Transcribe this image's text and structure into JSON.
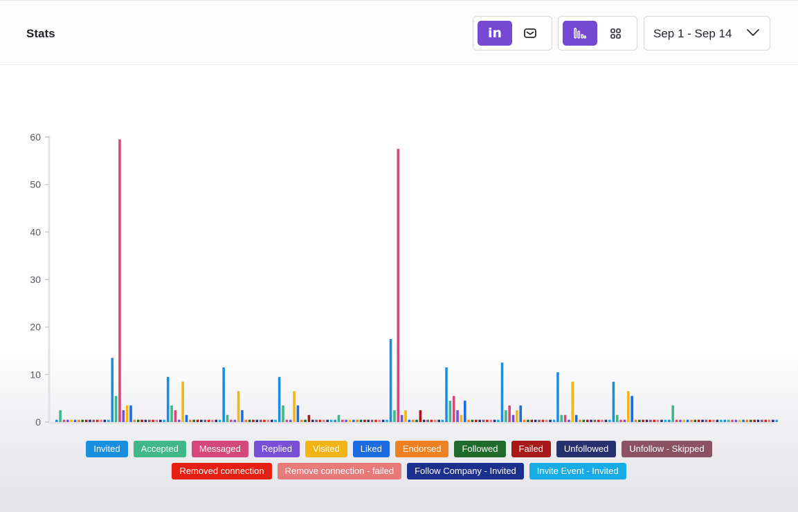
{
  "header": {
    "title": "Stats",
    "date_range": "Sep 1 - Sep 14",
    "source_toggle": [
      {
        "icon": "linkedin-icon",
        "active": true
      },
      {
        "icon": "mail-icon",
        "active": false
      }
    ],
    "view_toggle": [
      {
        "icon": "bar-chart-icon",
        "active": true
      },
      {
        "icon": "grid-icon",
        "active": false
      }
    ]
  },
  "chart_data": {
    "type": "bar",
    "categories": [
      "",
      "",
      "",
      "",
      "",
      "",
      "",
      "",
      "",
      "",
      "",
      "",
      ""
    ],
    "ylim": [
      0,
      60
    ],
    "yticks": [
      "0",
      "10",
      "20",
      "30",
      "40",
      "50",
      "60"
    ],
    "grid": false,
    "legend_position": "bottom",
    "series": [
      {
        "name": "Invited",
        "color": "#1a8fe0",
        "values": [
          0.5,
          13.5,
          9.5,
          11.5,
          9.5,
          0.5,
          17.5,
          11.5,
          12.5,
          10.5,
          8.5,
          0.5,
          0.5
        ]
      },
      {
        "name": "Accepted",
        "color": "#3fb889",
        "values": [
          2.5,
          5.5,
          3.5,
          1.5,
          3.5,
          1.5,
          2.5,
          4.5,
          2.5,
          1.5,
          1.5,
          3.5,
          0.5
        ]
      },
      {
        "name": "Messaged",
        "color": "#d5497a",
        "values": [
          0.5,
          59.5,
          2.5,
          0.5,
          0.5,
          0.5,
          57.5,
          5.5,
          3.5,
          1.5,
          0.5,
          0.5,
          0.5
        ]
      },
      {
        "name": "Replied",
        "color": "#7a4fd8",
        "values": [
          0.5,
          2.5,
          0.5,
          0.5,
          0.5,
          0.5,
          1.5,
          2.5,
          1.5,
          0.5,
          0.5,
          0.5,
          0.5
        ]
      },
      {
        "name": "Visited",
        "color": "#f2b515",
        "values": [
          0.5,
          3.5,
          8.5,
          6.5,
          6.5,
          0.5,
          2.5,
          1.5,
          2.5,
          8.5,
          6.5,
          0.5,
          0.5
        ]
      },
      {
        "name": "Liked",
        "color": "#1c6be0",
        "values": [
          0.5,
          3.5,
          1.5,
          2.5,
          3.5,
          0.5,
          0.5,
          4.5,
          3.5,
          1.5,
          5.5,
          0.5,
          0.5
        ]
      },
      {
        "name": "Endorsed",
        "color": "#ee8022",
        "values": [
          0.5,
          0.5,
          0.5,
          0.5,
          0.5,
          0.5,
          0.5,
          0.5,
          0.5,
          0.5,
          0.5,
          0.5,
          0.5
        ]
      },
      {
        "name": "Followed",
        "color": "#1f6b2b",
        "values": [
          0.5,
          0.5,
          0.5,
          0.5,
          0.5,
          0.5,
          0.5,
          0.5,
          0.5,
          0.5,
          0.5,
          0.5,
          0.5
        ]
      },
      {
        "name": "Failed",
        "color": "#a81818",
        "values": [
          0.5,
          0.5,
          0.5,
          0.5,
          1.5,
          0.5,
          2.5,
          0.5,
          0.5,
          0.5,
          0.5,
          0.5,
          0.5
        ]
      },
      {
        "name": "Unfollowed",
        "color": "#26306e",
        "values": [
          0.5,
          0.5,
          0.5,
          0.5,
          0.5,
          0.5,
          0.5,
          0.5,
          0.5,
          0.5,
          0.5,
          0.5,
          0.5
        ]
      },
      {
        "name": "Unfollow - Skipped",
        "color": "#8b5264",
        "values": [
          0.5,
          0.5,
          0.5,
          0.5,
          0.5,
          0.5,
          0.5,
          0.5,
          0.5,
          0.5,
          0.5,
          0.5,
          0.5
        ]
      },
      {
        "name": "Removed connection",
        "color": "#e61f10",
        "values": [
          0.5,
          0.5,
          0.5,
          0.5,
          0.5,
          0.5,
          0.5,
          0.5,
          0.5,
          0.5,
          0.5,
          0.5,
          0.5
        ]
      },
      {
        "name": "Remove connection - failed",
        "color": "#e97a7a",
        "values": [
          0.5,
          0.5,
          0.5,
          0.5,
          0.5,
          0.5,
          0.5,
          0.5,
          0.5,
          0.5,
          0.5,
          0.5,
          0.5
        ]
      },
      {
        "name": "Follow Company - Invited",
        "color": "#1b2f8c",
        "values": [
          0.5,
          0.5,
          0.5,
          0.5,
          0.5,
          0.5,
          0.5,
          0.5,
          0.5,
          0.5,
          0.5,
          0.5,
          0.5
        ]
      },
      {
        "name": "Invite Event - Invited",
        "color": "#18ace6",
        "values": [
          0.5,
          0.5,
          0.5,
          0.5,
          0.5,
          0.5,
          0.5,
          0.5,
          0.5,
          0.5,
          0.5,
          0.5,
          0.5
        ]
      }
    ]
  }
}
